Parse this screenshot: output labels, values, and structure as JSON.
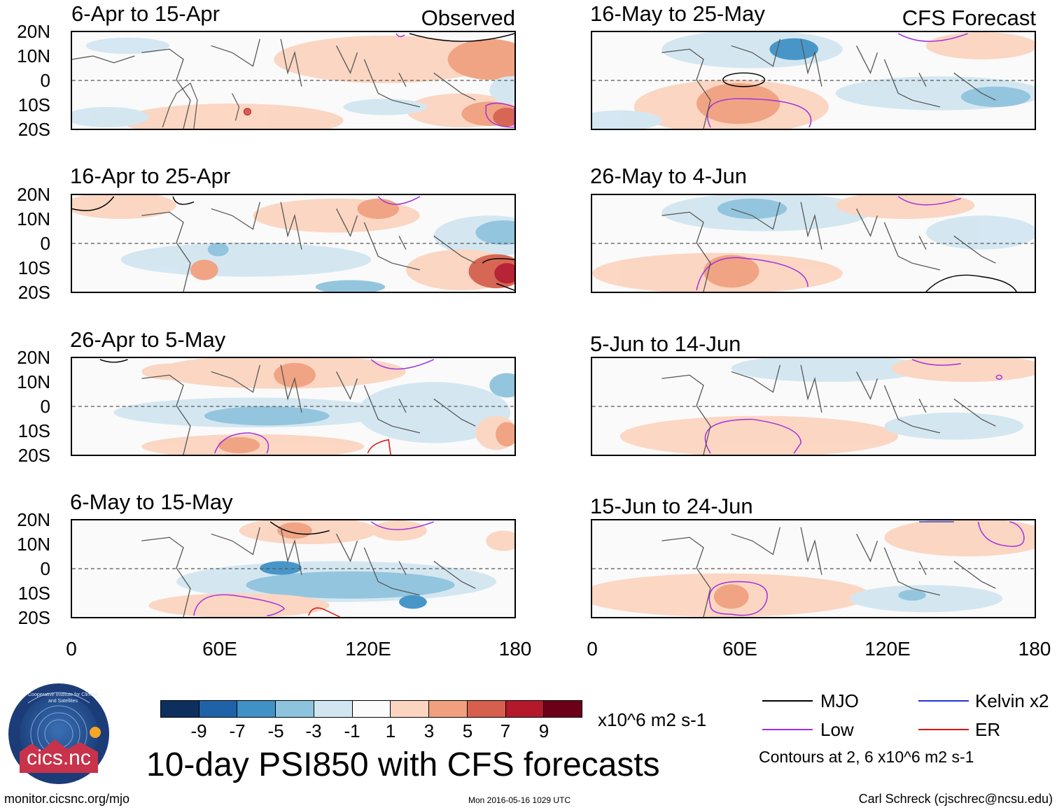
{
  "panels": [
    {
      "id": "p1",
      "title": "6-Apr to 15-Apr",
      "tag": "Observed"
    },
    {
      "id": "p2",
      "title": "16-Apr to 25-Apr",
      "tag": ""
    },
    {
      "id": "p3",
      "title": "26-Apr to 5-May",
      "tag": ""
    },
    {
      "id": "p4",
      "title": "6-May to 15-May",
      "tag": ""
    },
    {
      "id": "p5",
      "title": "16-May to 25-May",
      "tag": "CFS Forecast"
    },
    {
      "id": "p6",
      "title": "26-May to 4-Jun",
      "tag": ""
    },
    {
      "id": "p7",
      "title": "5-Jun to 14-Jun",
      "tag": ""
    },
    {
      "id": "p8",
      "title": "15-Jun to 24-Jun",
      "tag": ""
    }
  ],
  "lat_labels": [
    "20N",
    "10N",
    "0",
    "10S",
    "20S"
  ],
  "lon_labels": [
    "0",
    "60E",
    "120E",
    "180"
  ],
  "colorbar": {
    "colors": [
      "#0d2f5e",
      "#1f62a8",
      "#3f91c6",
      "#8ec3dd",
      "#d2e6f1",
      "#fbfbfb",
      "#fcd5c0",
      "#f0a07e",
      "#d6604d",
      "#b4192b",
      "#6c0018"
    ],
    "labels": [
      "-9",
      "-7",
      "-5",
      "-3",
      "-1",
      "1",
      "3",
      "5",
      "7",
      "9"
    ],
    "units": "x10^6 m2 s-1"
  },
  "title": "10-day PSI850 with CFS forecasts",
  "legend": {
    "items": [
      {
        "label": "MJO",
        "color": "#000000"
      },
      {
        "label": "Kelvin x2",
        "color": "#2233cc"
      },
      {
        "label": "Low",
        "color": "#a030e0"
      },
      {
        "label": "ER",
        "color": "#dd1111"
      }
    ],
    "note": "Contours at 2, 6 x10^6 m2 s-1"
  },
  "footer": {
    "left": "monitor.cicsnc.org/mjo",
    "center": "Mon 2016-05-16 1029 UTC",
    "right": "Carl Schreck (cjschrec@ncsu.edu)"
  },
  "logo": {
    "ring_text": "Cooperative Institute for Climate and Satellites",
    "name": "cics.nc"
  }
}
